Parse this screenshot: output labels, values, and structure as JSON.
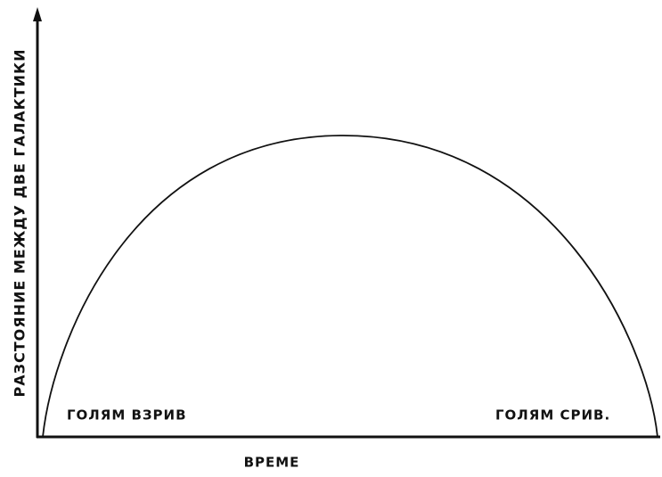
{
  "axes": {
    "y_label": "РАЗСТОЯНИЕ МЕЖДУ ДВЕ ГАЛАКТИКИ",
    "x_label": "ВРЕМЕ"
  },
  "annotations": [
    "ГОЛЯМ ВЗРИВ",
    "ГОЛЯМ СРИВ."
  ]
}
